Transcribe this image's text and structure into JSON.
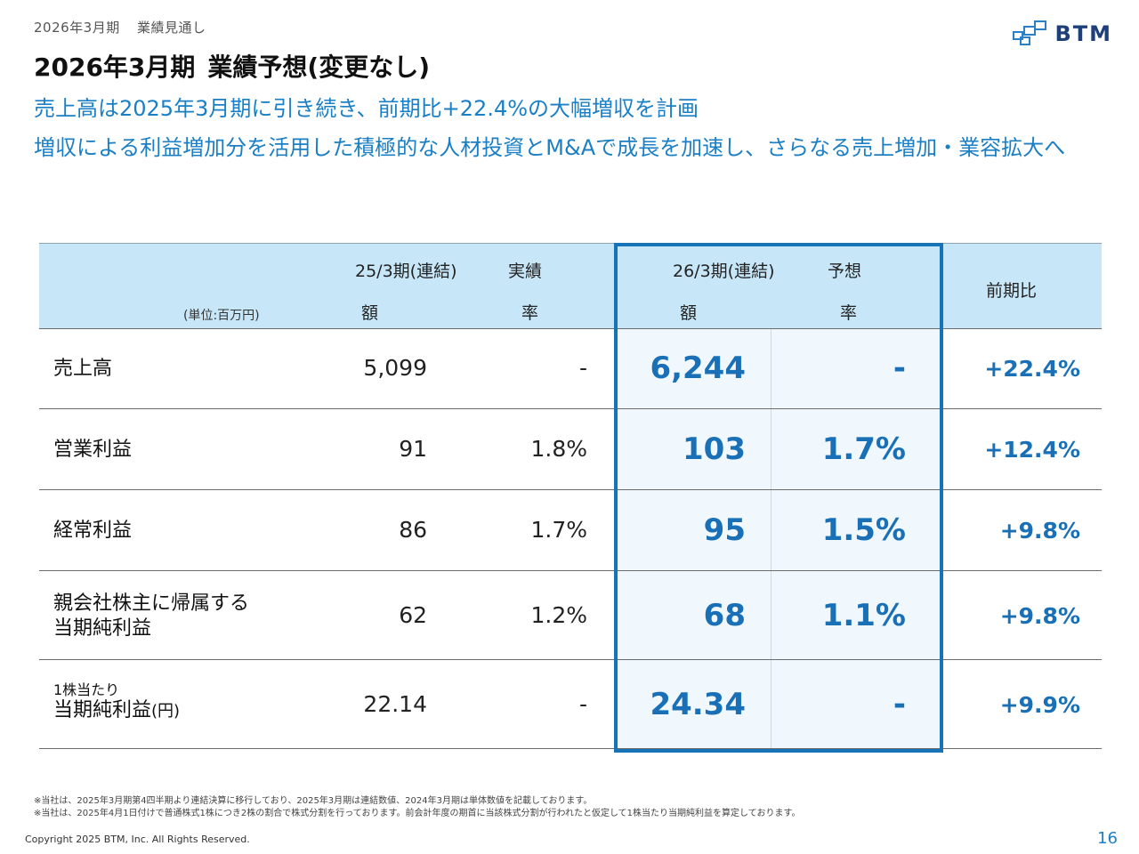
{
  "header": {
    "breadcrumb": [
      "2026年3月期",
      "業績見通し"
    ],
    "logo_text": "BTM",
    "title_main": "2026年3月期",
    "title_sub": "業績予想(変更なし)",
    "lead_1": "売上高は2025年3月期に引き続き、前期比+22.4%の大幅増収を計画",
    "lead_2": "増収による利益増加分を活用した積極的な人材投資とM&Aで成長を加速し、さらなる売上増加・業容拡大へ"
  },
  "table": {
    "unit": "(単位:百万円)",
    "actual_header": "25/3期(連結)",
    "actual_tag": "実績",
    "forecast_header": "26/3期(連結)",
    "forecast_tag": "予想",
    "col_amount": "額",
    "col_rate": "率",
    "col_yoy": "前期比",
    "rows": [
      {
        "label": "売上高",
        "label_small": "",
        "actual_amount": "5,099",
        "actual_rate": "-",
        "forecast_amount": "6,244",
        "forecast_rate": "-",
        "yoy": "+22.4%"
      },
      {
        "label": "営業利益",
        "label_small": "",
        "actual_amount": "91",
        "actual_rate": "1.8%",
        "forecast_amount": "103",
        "forecast_rate": "1.7%",
        "yoy": "+12.4%"
      },
      {
        "label": "経常利益",
        "label_small": "",
        "actual_amount": "86",
        "actual_rate": "1.7%",
        "forecast_amount": "95",
        "forecast_rate": "1.5%",
        "yoy": "+9.8%"
      },
      {
        "label": "親会社株主に帰属する当期純利益",
        "label_line1": "親会社株主に帰属する",
        "label_line2": "当期純利益",
        "actual_amount": "62",
        "actual_rate": "1.2%",
        "forecast_amount": "68",
        "forecast_rate": "1.1%",
        "yoy": "+9.8%"
      },
      {
        "label_small": "1株当たり",
        "label_main": "当期純利益",
        "label_unit": "(円)",
        "actual_amount": "22.14",
        "actual_rate": "-",
        "forecast_amount": "24.34",
        "forecast_rate": "-",
        "yoy": "+9.9%"
      }
    ]
  },
  "footer": {
    "note_1": "※当社は、2025年3月期第4四半期より連結決算に移行しており、2025年3月期は連結数値、2024年3月期は単体数値を記載しております。",
    "note_2": "※当社は、2025年4月1日付けで普通株式1株につき2株の割合で株式分割を行っております。前会計年度の期首に当該株式分割が行われたと仮定して1株当たり当期純利益を算定しております。",
    "copyright": "Copyright 2025 BTM, Inc. All Rights Reserved.",
    "page_number": "16"
  },
  "colors": {
    "accent": "#1a7fc4",
    "header_bg": "#c7e7f9",
    "forecast_frame": "#1673b8",
    "logo": "#1e3f7a"
  }
}
